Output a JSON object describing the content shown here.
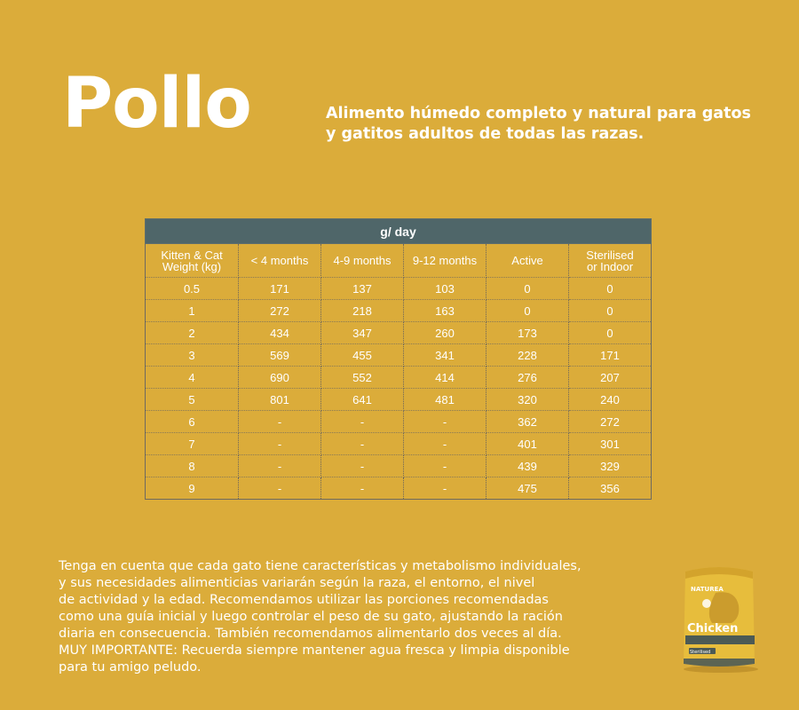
{
  "title": "Pollo",
  "subtitle_line1": "Alimento húmedo completo y natural para gatos",
  "subtitle_line2": "y gatitos adultos de todas las razas.",
  "table": {
    "header": "g/ day",
    "columns": [
      [
        "Kitten & Cat",
        "Weight (kg)"
      ],
      [
        "< 4 months",
        ""
      ],
      [
        "4-9 months",
        ""
      ],
      [
        "9-12 months",
        ""
      ],
      [
        "Active",
        ""
      ],
      [
        "Sterilised",
        "or Indoor"
      ]
    ],
    "rows": [
      [
        "0.5",
        "171",
        "137",
        "103",
        "0",
        "0"
      ],
      [
        "1",
        "272",
        "218",
        "163",
        "0",
        "0"
      ],
      [
        "2",
        "434",
        "347",
        "260",
        "173",
        "0"
      ],
      [
        "3",
        "569",
        "455",
        "341",
        "228",
        "171"
      ],
      [
        "4",
        "690",
        "552",
        "414",
        "276",
        "207"
      ],
      [
        "5",
        "801",
        "641",
        "481",
        "320",
        "240"
      ],
      [
        "6",
        "-",
        "-",
        "-",
        "362",
        "272"
      ],
      [
        "7",
        "-",
        "-",
        "-",
        "401",
        "301"
      ],
      [
        "8",
        "-",
        "-",
        "-",
        "439",
        "329"
      ],
      [
        "9",
        "-",
        "-",
        "-",
        "475",
        "356"
      ]
    ]
  },
  "note_lines": [
    "Tenga en cuenta que cada gato tiene características y metabolismo individuales,",
    "y sus necesidades alimenticias variarán según la raza, el entorno, el nivel",
    "de actividad y la edad. Recomendamos utilizar las porciones recomendadas",
    "como una guía inicial y luego controlar el peso de su gato, ajustando la ración",
    "diaria en consecuencia. También recomendamos alimentarlo dos veces al día.",
    "MUY IMPORTANTE: Recuerda siempre mantener agua fresca y limpia disponible",
    "para tu amigo peludo."
  ],
  "pouch": {
    "brand": "NATUREA",
    "product": "Chicken",
    "badge": "Sterilised",
    "colors": {
      "pouch": "#e7bd3c",
      "band": "#4c5a55"
    }
  }
}
